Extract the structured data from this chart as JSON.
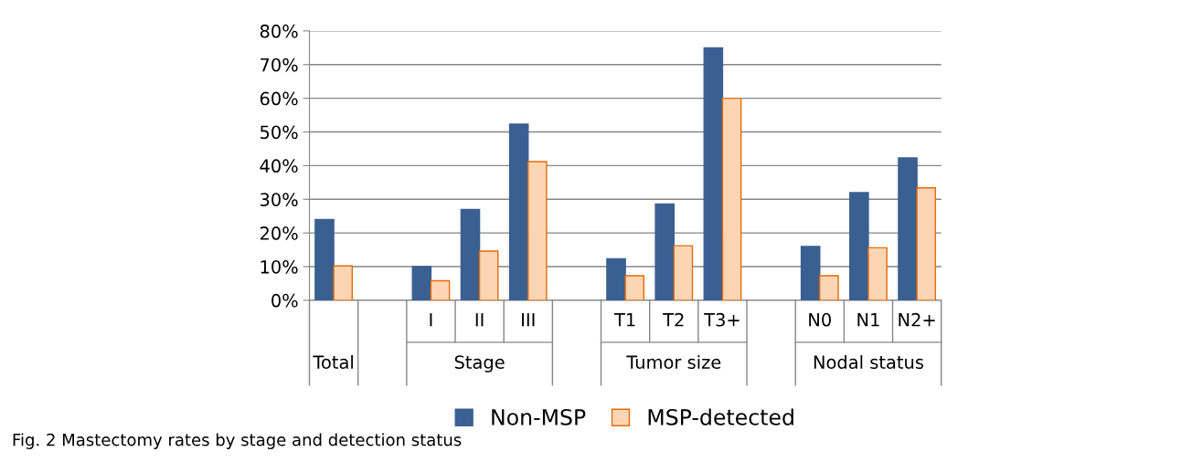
{
  "chart_data": {
    "type": "bar",
    "title": "Fig. 2 Mastectomy rates by stage and detection status",
    "categories": [
      null,
      null,
      "I",
      "II",
      "III",
      null,
      "T1",
      "T2",
      "T3+",
      null,
      "N0",
      "N1",
      "N2+"
    ],
    "annotations": [
      "Total",
      "Stage",
      "Tumor size",
      "Nodal status"
    ],
    "series": [
      {
        "name": "Non-MSP",
        "color": "#3a5f91",
        "values": [
          24,
          null,
          10,
          27,
          52.3,
          null,
          12.3,
          28.6,
          75,
          null,
          16,
          32,
          42.3
        ]
      },
      {
        "name": "MSP-detected",
        "color": "#fcd5b5",
        "values": [
          10.2,
          null,
          5.8,
          14.6,
          41.2,
          null,
          7.3,
          16.2,
          60,
          null,
          7.3,
          15.6,
          33.4
        ]
      }
    ],
    "ylim": [
      0,
      80
    ],
    "yticks": [
      {
        "value": 0,
        "label": "0%"
      },
      {
        "value": 10,
        "label": "10%"
      },
      {
        "value": 20,
        "label": "20%"
      },
      {
        "value": 30,
        "label": "30%"
      },
      {
        "value": 40,
        "label": "40%"
      },
      {
        "value": 50,
        "label": "50%"
      },
      {
        "value": 60,
        "label": "60%"
      },
      {
        "value": 70,
        "label": "70%"
      },
      {
        "value": 80,
        "label": "80%"
      }
    ],
    "grid": "y",
    "legend": "bottom"
  }
}
